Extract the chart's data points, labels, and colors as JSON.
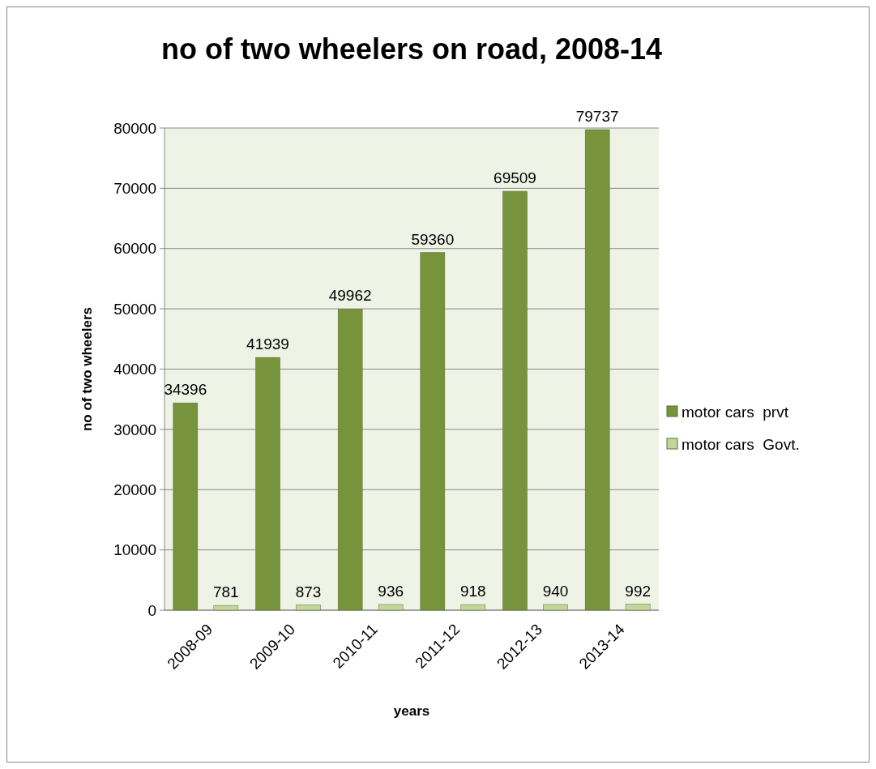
{
  "chart_data": {
    "type": "bar",
    "title": "no of two wheelers on road, 2008-14",
    "xlabel": "years",
    "ylabel": "no of two wheelers",
    "categories": [
      "2008-09",
      "2009-10",
      "2010-11",
      "2011-12",
      "2012-13",
      "2013-14"
    ],
    "series": [
      {
        "name": "motor cars  prvt",
        "color": "#77933c",
        "values": [
          34396,
          41939,
          49962,
          59360,
          69509,
          79737
        ]
      },
      {
        "name": "motor cars  Govt.",
        "color": "#c3d69b",
        "values": [
          781,
          873,
          936,
          918,
          940,
          992
        ]
      }
    ],
    "ylim": [
      0,
      80000
    ],
    "yticks": [
      0,
      10000,
      20000,
      30000,
      40000,
      50000,
      60000,
      70000,
      80000
    ],
    "grid": "y",
    "legend": "right",
    "data_labels": true
  }
}
